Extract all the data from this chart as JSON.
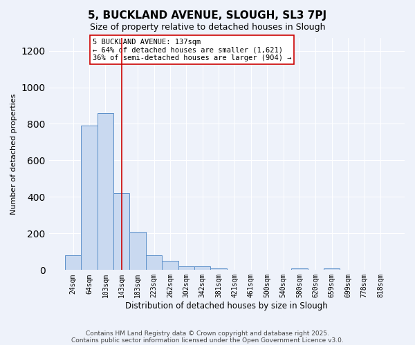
{
  "title": "5, BUCKLAND AVENUE, SLOUGH, SL3 7PJ",
  "subtitle": "Size of property relative to detached houses in Slough",
  "xlabel": "Distribution of detached houses by size in Slough",
  "ylabel": "Number of detached properties",
  "bar_values": [
    80,
    790,
    860,
    420,
    210,
    80,
    50,
    20,
    20,
    10,
    0,
    0,
    0,
    0,
    10,
    0,
    10,
    0,
    0,
    0
  ],
  "bin_labels": [
    "24sqm",
    "64sqm",
    "103sqm",
    "143sqm",
    "183sqm",
    "223sqm",
    "262sqm",
    "302sqm",
    "342sqm",
    "381sqm",
    "421sqm",
    "461sqm",
    "500sqm",
    "540sqm",
    "580sqm",
    "620sqm",
    "659sqm",
    "699sqm",
    "778sqm",
    "818sqm"
  ],
  "bar_color": "#c9d9f0",
  "bar_edge_color": "#5b8fc9",
  "background_color": "#eef2fa",
  "grid_color": "#ffffff",
  "vline_x": 3,
  "vline_color": "#cc0000",
  "annotation_text": "5 BUCKLAND AVENUE: 137sqm\n← 64% of detached houses are smaller (1,621)\n36% of semi-detached houses are larger (904) →",
  "annotation_box_color": "#ffffff",
  "annotation_box_edge": "#cc0000",
  "ylim": [
    0,
    1270
  ],
  "yticks": [
    0,
    200,
    400,
    600,
    800,
    1000,
    1200
  ],
  "footer1": "Contains HM Land Registry data © Crown copyright and database right 2025.",
  "footer2": "Contains public sector information licensed under the Open Government Licence v3.0."
}
